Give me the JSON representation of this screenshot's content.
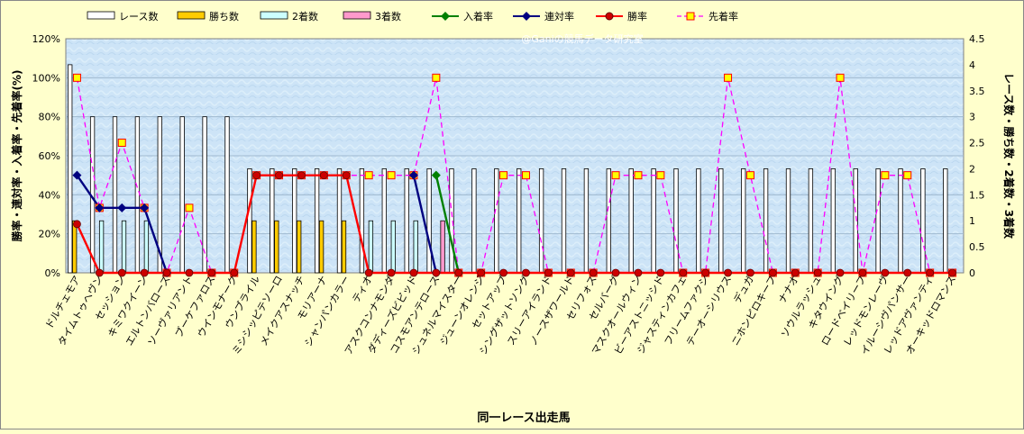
{
  "chart_data": {
    "type": "bar",
    "watermark": "@Ganiの競馬データ研究室",
    "xlabel": "同一レース出走馬",
    "ylabel_left": "勝率・連対率・入着率・先着率(%)",
    "ylabel_right": "レース数・勝ち数・2着数・3着数",
    "left_axis": {
      "min": 0,
      "max": 120,
      "ticks": [
        "0%",
        "20%",
        "40%",
        "60%",
        "80%",
        "100%",
        "120%"
      ]
    },
    "right_axis": {
      "min": 0,
      "max": 4.5,
      "ticks": [
        "0",
        "0.5",
        "1",
        "1.5",
        "2",
        "2.5",
        "3",
        "3.5",
        "4",
        "4.5"
      ]
    },
    "legend_position": "top",
    "categories": [
      "ドルチェモア",
      "タイムトゥヘヴン",
      "セッション",
      "キミワクイーン",
      "エルトンバローズ",
      "ソーヴァリアント",
      "ブーケファロス",
      "ウインモナーク",
      "ウンブライル",
      "ミシシッピテソーロ",
      "メイクアスナッチ",
      "モリアーナ",
      "シャンパンカラー",
      "ティオ",
      "アスクコンナモンダ",
      "ダディーズビビッド",
      "コスモアンテロース",
      "シュネルマイスター",
      "ジューンオレンジ",
      "セットアップ",
      "シングザットソング",
      "スリーアイランド",
      "ノースザワールド",
      "セリフォス",
      "セルバーグ",
      "マスクオールウィン",
      "ビーアストニッシド",
      "ジャスティンカフェ",
      "フリームファクシ",
      "テーオーシリウス",
      "デュガ",
      "ニホンピロキーフ",
      "ナナオ",
      "ソウルラッシュ",
      "キタウイング",
      "ロードベイリーフ",
      "レッドモンレーヴ",
      "イルーシヴパンサー",
      "レッドアヴァンティ",
      "オーキッドロマンス"
    ],
    "series": [
      {
        "name": "レース数",
        "kind": "bar",
        "axis": "right",
        "color": "#ffffff",
        "values": [
          4,
          3,
          3,
          3,
          3,
          3,
          3,
          3,
          2,
          2,
          2,
          2,
          2,
          2,
          2,
          2,
          2,
          2,
          2,
          2,
          2,
          2,
          2,
          2,
          2,
          2,
          2,
          2,
          2,
          2,
          2,
          2,
          2,
          2,
          2,
          2,
          2,
          2,
          2,
          2
        ]
      },
      {
        "name": "勝ち数",
        "kind": "bar",
        "axis": "right",
        "color": "#ffcc00",
        "values": [
          1,
          0,
          0,
          0,
          0,
          0,
          0,
          0,
          1,
          1,
          1,
          1,
          1,
          0,
          0,
          0,
          0,
          0,
          0,
          0,
          0,
          0,
          0,
          0,
          0,
          0,
          0,
          0,
          0,
          0,
          0,
          0,
          0,
          0,
          0,
          0,
          0,
          0,
          0,
          0
        ]
      },
      {
        "name": "2着数",
        "kind": "bar",
        "axis": "right",
        "color": "#ccffff",
        "values": [
          0,
          1,
          1,
          1,
          0,
          0,
          0,
          0,
          0,
          0,
          0,
          0,
          0,
          1,
          1,
          1,
          0,
          0,
          0,
          0,
          0,
          0,
          0,
          0,
          0,
          0,
          0,
          0,
          0,
          0,
          0,
          0,
          0,
          0,
          0,
          0,
          0,
          0,
          0,
          0
        ]
      },
      {
        "name": "3着数",
        "kind": "bar",
        "axis": "right",
        "color": "#ff99cc",
        "values": [
          0,
          0,
          0,
          0,
          0,
          0,
          0,
          0,
          0,
          0,
          0,
          0,
          0,
          0,
          0,
          0,
          1,
          0,
          0,
          0,
          0,
          0,
          0,
          0,
          0,
          0,
          0,
          0,
          0,
          0,
          0,
          0,
          0,
          0,
          0,
          0,
          0,
          0,
          0,
          0
        ]
      },
      {
        "name": "入着率",
        "kind": "line",
        "axis": "left",
        "color": "#008000",
        "marker": "diamond",
        "values": [
          null,
          null,
          null,
          null,
          null,
          null,
          null,
          null,
          null,
          null,
          null,
          null,
          null,
          null,
          null,
          null,
          50,
          0,
          null,
          null,
          null,
          null,
          null,
          null,
          null,
          null,
          null,
          null,
          null,
          null,
          null,
          null,
          null,
          null,
          null,
          null,
          null,
          null,
          null,
          null
        ]
      },
      {
        "name": "連対率",
        "kind": "line",
        "axis": "left",
        "color": "#000080",
        "marker": "diamond",
        "values": [
          50,
          33.3,
          33.3,
          33.3,
          0,
          null,
          null,
          null,
          null,
          null,
          null,
          null,
          null,
          null,
          null,
          50,
          0,
          null,
          null,
          null,
          null,
          null,
          null,
          null,
          null,
          null,
          null,
          null,
          null,
          null,
          null,
          null,
          null,
          null,
          null,
          null,
          null,
          null,
          null,
          null
        ]
      },
      {
        "name": "勝率",
        "kind": "line",
        "axis": "left",
        "color": "#ff0000",
        "marker": "circle",
        "values": [
          25,
          0,
          0,
          0,
          0,
          0,
          0,
          0,
          50,
          50,
          50,
          50,
          50,
          0,
          0,
          0,
          0,
          0,
          0,
          0,
          0,
          0,
          0,
          0,
          0,
          0,
          0,
          0,
          0,
          0,
          0,
          0,
          0,
          0,
          0,
          0,
          0,
          0,
          0,
          0
        ]
      },
      {
        "name": "先着率",
        "kind": "line",
        "axis": "left",
        "color": "#ff00ff",
        "marker": "square",
        "dashed": true,
        "values": [
          100,
          33.3,
          66.7,
          33.3,
          0,
          33.3,
          0,
          0,
          50,
          50,
          50,
          50,
          50,
          50,
          50,
          50,
          100,
          0,
          0,
          50,
          50,
          0,
          0,
          0,
          50,
          50,
          50,
          0,
          0,
          100,
          50,
          0,
          0,
          0,
          100,
          0,
          50,
          50,
          0,
          0
        ]
      }
    ]
  }
}
